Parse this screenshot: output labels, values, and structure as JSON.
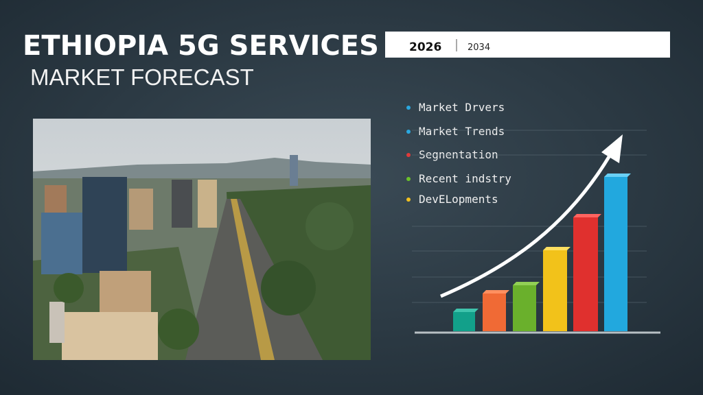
{
  "header": {
    "title": "ETHIOPIA 5G SERVICES",
    "subtitle": "MARKET FORECAST"
  },
  "timeline": {
    "start": "2026",
    "end": "2034"
  },
  "bullets": [
    "Market Drvers",
    "Market Trends",
    "Segnentation",
    "Recent indstry",
    "DevELopments"
  ]
}
